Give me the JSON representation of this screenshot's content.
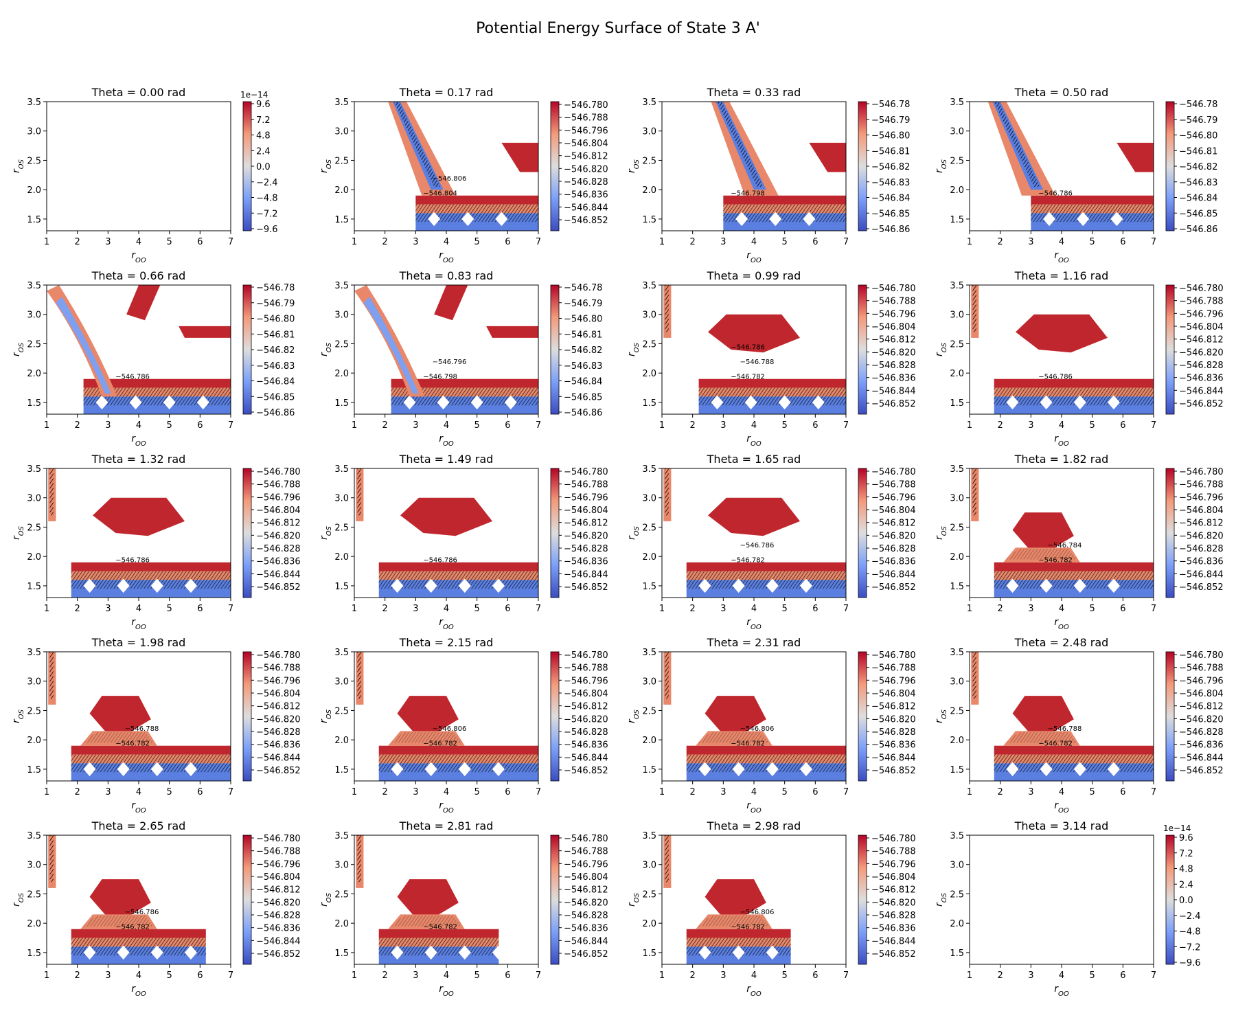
{
  "figure": {
    "title": "Potential Energy Surface of State 3 A'"
  },
  "chart_data": {
    "type": "contour",
    "title": "Potential Energy Surface of State 3 A'",
    "xlabel": "r_OO",
    "ylabel": "r_OS",
    "xlim": [
      1,
      7
    ],
    "ylim": [
      1.3,
      3.5
    ],
    "x_ticks": [
      1,
      2,
      3,
      4,
      5,
      6,
      7
    ],
    "y_ticks": [
      1.5,
      2.0,
      2.5,
      3.0,
      3.5
    ],
    "y_tick_labels": [
      "1.5",
      "2.0",
      "2.5",
      "3.0",
      "3.5"
    ],
    "colormap": "coolwarm",
    "colors": {
      "low": "#3b4cc0",
      "mid": "#dddddd",
      "high": "#b40426"
    },
    "colorbar_sets": {
      "A": {
        "ticks": [
          "9.6",
          "7.2",
          "4.8",
          "2.4",
          "0.0",
          "−2.4",
          "−4.8",
          "−7.2",
          "−9.6"
        ],
        "offset": "1e−14",
        "range": [
          -9.6,
          9.6
        ]
      },
      "B": {
        "ticks": [
          "−546.780",
          "−546.788",
          "−546.796",
          "−546.804",
          "−546.812",
          "−546.820",
          "−546.828",
          "−546.836",
          "−546.844",
          "−546.852"
        ],
        "range": [
          -546.856,
          -546.78
        ]
      },
      "C": {
        "ticks": [
          "−546.78",
          "−546.79",
          "−546.80",
          "−546.81",
          "−546.82",
          "−546.83",
          "−546.84",
          "−546.85",
          "−546.86"
        ],
        "range": [
          -546.86,
          -546.78
        ]
      }
    },
    "panels": [
      {
        "theta": 0.0,
        "title": "Theta = 0.00 rad",
        "colorbar": "A",
        "contour_labels": []
      },
      {
        "theta": 0.17,
        "title": "Theta = 0.17 rad",
        "colorbar": "B",
        "contour_labels": [
          "−546.804",
          "−546.806"
        ]
      },
      {
        "theta": 0.33,
        "title": "Theta = 0.33 rad",
        "colorbar": "C",
        "contour_labels": [
          "−546.798"
        ]
      },
      {
        "theta": 0.5,
        "title": "Theta = 0.50 rad",
        "colorbar": "C",
        "contour_labels": [
          "−546.786"
        ]
      },
      {
        "theta": 0.66,
        "title": "Theta = 0.66 rad",
        "colorbar": "C",
        "contour_labels": [
          "−546.786"
        ]
      },
      {
        "theta": 0.83,
        "title": "Theta = 0.83 rad",
        "colorbar": "C",
        "contour_labels": [
          "−546.798",
          "−546.796"
        ]
      },
      {
        "theta": 0.99,
        "title": "Theta = 0.99 rad",
        "colorbar": "B",
        "contour_labels": [
          "−546.782",
          "−546.788",
          "−546.786"
        ]
      },
      {
        "theta": 1.16,
        "title": "Theta = 1.16 rad",
        "colorbar": "B",
        "contour_labels": [
          "−546.786"
        ]
      },
      {
        "theta": 1.32,
        "title": "Theta = 1.32 rad",
        "colorbar": "B",
        "contour_labels": [
          "−546.786"
        ]
      },
      {
        "theta": 1.49,
        "title": "Theta = 1.49 rad",
        "colorbar": "B",
        "contour_labels": [
          "−546.786"
        ]
      },
      {
        "theta": 1.65,
        "title": "Theta = 1.65 rad",
        "colorbar": "B",
        "contour_labels": [
          "−546.782",
          "−546.786"
        ]
      },
      {
        "theta": 1.82,
        "title": "Theta = 1.82 rad",
        "colorbar": "B",
        "contour_labels": [
          "−546.782",
          "−546.784"
        ]
      },
      {
        "theta": 1.98,
        "title": "Theta = 1.98 rad",
        "colorbar": "B",
        "contour_labels": [
          "−546.782",
          "−546.788"
        ]
      },
      {
        "theta": 2.15,
        "title": "Theta = 2.15 rad",
        "colorbar": "B",
        "contour_labels": [
          "−546.782",
          "−546.806"
        ]
      },
      {
        "theta": 2.31,
        "title": "Theta = 2.31 rad",
        "colorbar": "B",
        "contour_labels": [
          "−546.782",
          "−546.806"
        ]
      },
      {
        "theta": 2.48,
        "title": "Theta = 2.48 rad",
        "colorbar": "B",
        "contour_labels": [
          "−546.782",
          "−546.788"
        ]
      },
      {
        "theta": 2.65,
        "title": "Theta = 2.65 rad",
        "colorbar": "B",
        "contour_labels": [
          "−546.782",
          "−546.786"
        ]
      },
      {
        "theta": 2.81,
        "title": "Theta = 2.81 rad",
        "colorbar": "B",
        "contour_labels": [
          "−546.782"
        ]
      },
      {
        "theta": 2.98,
        "title": "Theta = 2.98 rad",
        "colorbar": "B",
        "contour_labels": [
          "−546.782",
          "−546.806"
        ]
      },
      {
        "theta": 3.14,
        "title": "Theta = 3.14 rad",
        "colorbar": "A",
        "contour_labels": []
      }
    ],
    "grid": false,
    "legend": "none"
  }
}
